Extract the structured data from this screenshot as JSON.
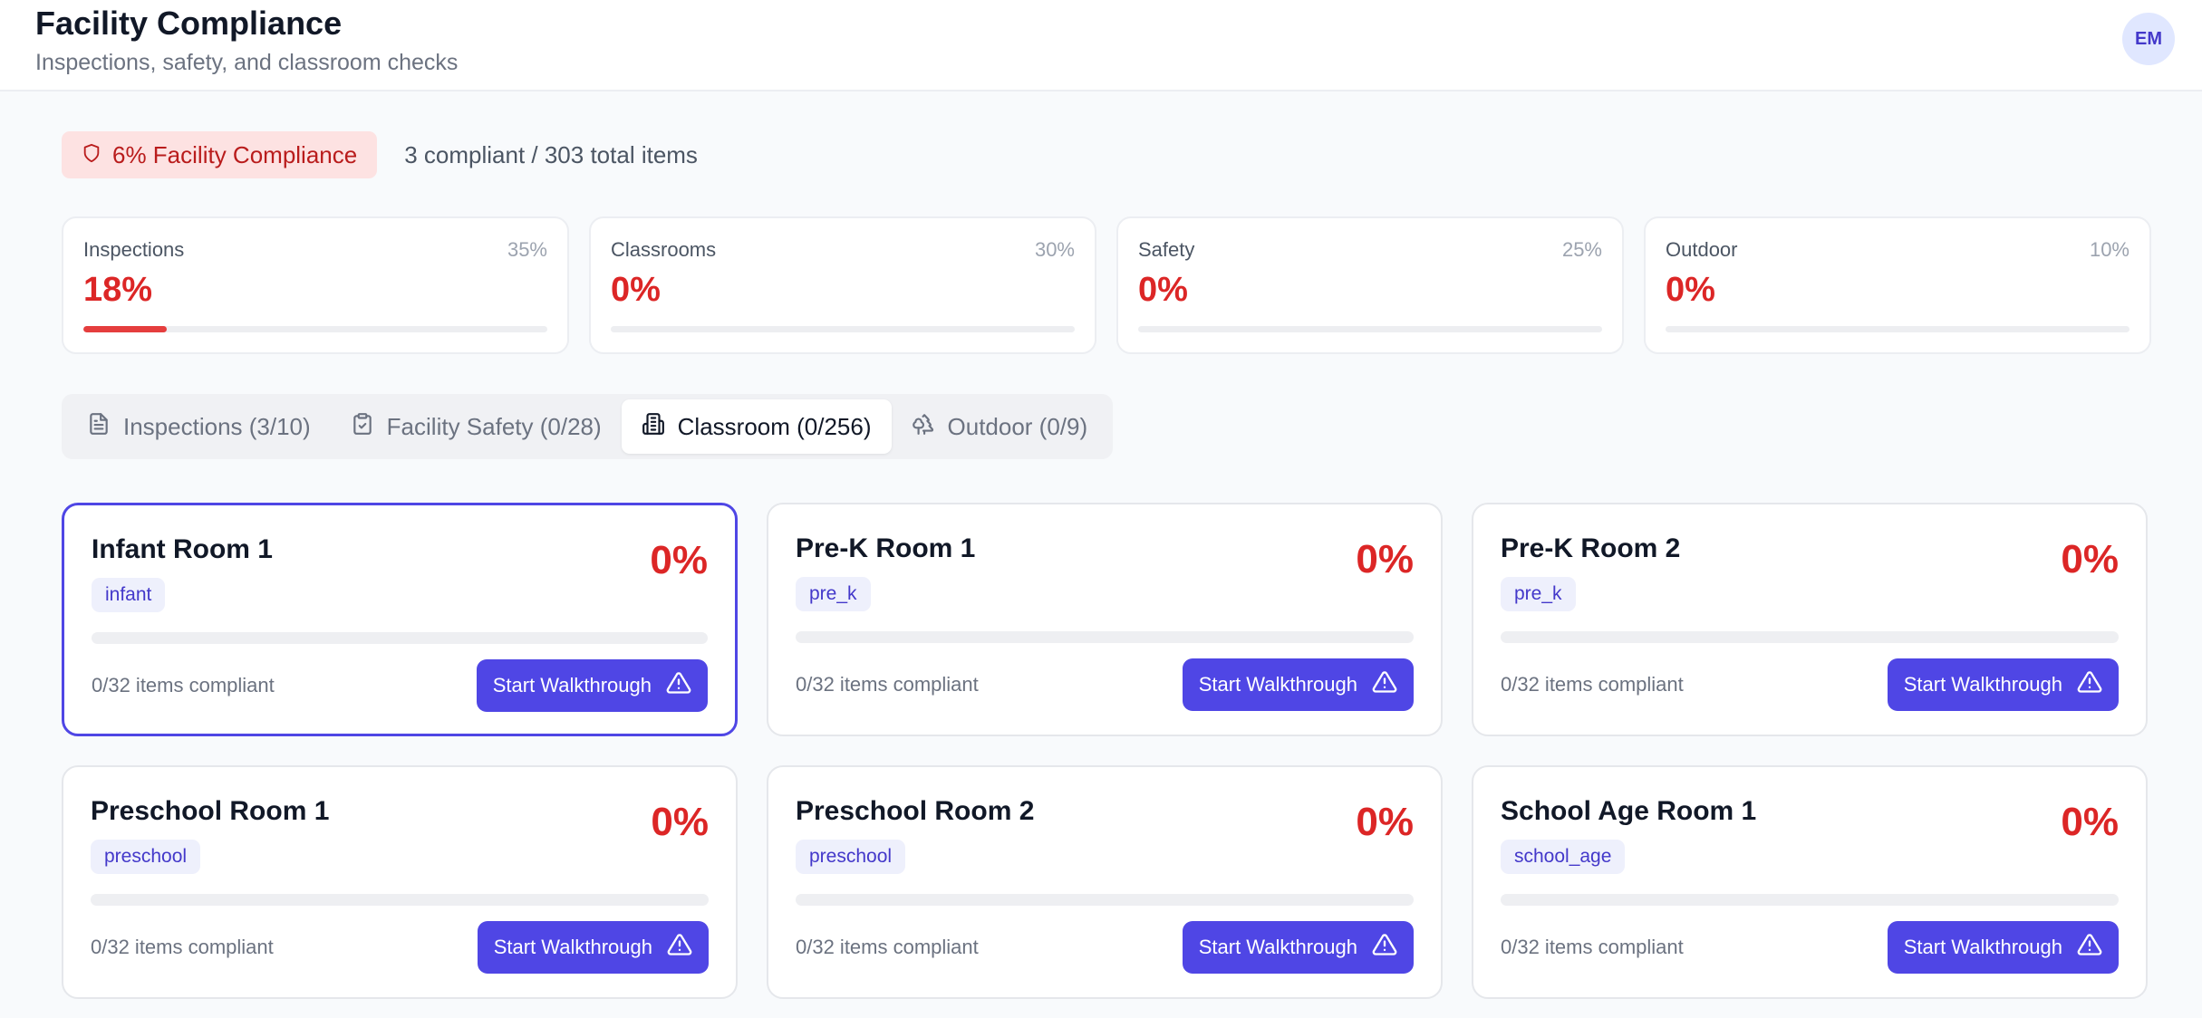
{
  "header": {
    "title": "Facility Compliance",
    "subtitle": "Inspections, safety, and classroom checks",
    "avatar_initials": "EM"
  },
  "summary": {
    "badge_label": "6% Facility Compliance",
    "badge_icon": "shield-icon",
    "counts_text": "3 compliant / 303 total items"
  },
  "stats": [
    {
      "label": "Inspections",
      "weight": "35%",
      "value": "18%",
      "progress": 0.18
    },
    {
      "label": "Classrooms",
      "weight": "30%",
      "value": "0%",
      "progress": 0
    },
    {
      "label": "Safety",
      "weight": "25%",
      "value": "0%",
      "progress": 0
    },
    {
      "label": "Outdoor",
      "weight": "10%",
      "value": "0%",
      "progress": 0
    }
  ],
  "tabs": [
    {
      "label": "Inspections (3/10)",
      "icon": "file-text-icon",
      "active": false
    },
    {
      "label": "Facility Safety (0/28)",
      "icon": "clipboard-check-icon",
      "active": false
    },
    {
      "label": "Classroom (0/256)",
      "icon": "building-icon",
      "active": true
    },
    {
      "label": "Outdoor (0/9)",
      "icon": "trees-icon",
      "active": false
    }
  ],
  "rooms": [
    {
      "name": "Infant Room 1",
      "type": "infant",
      "percent": "0%",
      "compliant_text": "0/32 items compliant",
      "button_label": "Start Walkthrough",
      "selected": true
    },
    {
      "name": "Pre-K Room 1",
      "type": "pre_k",
      "percent": "0%",
      "compliant_text": "0/32 items compliant",
      "button_label": "Start Walkthrough",
      "selected": false
    },
    {
      "name": "Pre-K Room 2",
      "type": "pre_k",
      "percent": "0%",
      "compliant_text": "0/32 items compliant",
      "button_label": "Start Walkthrough",
      "selected": false
    },
    {
      "name": "Preschool Room 1",
      "type": "preschool",
      "percent": "0%",
      "compliant_text": "0/32 items compliant",
      "button_label": "Start Walkthrough",
      "selected": false
    },
    {
      "name": "Preschool Room 2",
      "type": "preschool",
      "percent": "0%",
      "compliant_text": "0/32 items compliant",
      "button_label": "Start Walkthrough",
      "selected": false
    },
    {
      "name": "School Age Room 1",
      "type": "school_age",
      "percent": "0%",
      "compliant_text": "0/32 items compliant",
      "button_label": "Start Walkthrough",
      "selected": false
    }
  ],
  "colors": {
    "accent": "#4f46e5",
    "danger": "#dc2626",
    "badge_bg": "#fde2e2"
  }
}
